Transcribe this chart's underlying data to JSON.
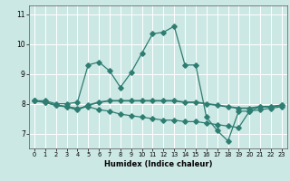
{
  "xlabel": "Humidex (Indice chaleur)",
  "bg_color": "#cce8e4",
  "line_color": "#2e7d72",
  "grid_color": "#ffffff",
  "xlim": [
    -0.5,
    23.5
  ],
  "ylim": [
    6.5,
    11.3
  ],
  "yticks": [
    7,
    8,
    9,
    10,
    11
  ],
  "xticks": [
    0,
    1,
    2,
    3,
    4,
    5,
    6,
    7,
    8,
    9,
    10,
    11,
    12,
    13,
    14,
    15,
    16,
    17,
    18,
    19,
    20,
    21,
    22,
    23
  ],
  "line1_x": [
    0,
    1,
    2,
    3,
    4,
    5,
    6,
    7,
    8,
    9,
    10,
    11,
    12,
    13,
    14,
    15,
    16,
    17,
    18,
    19,
    20,
    21,
    22,
    23
  ],
  "line1_y": [
    8.1,
    8.1,
    8.0,
    8.0,
    8.05,
    9.3,
    9.4,
    9.1,
    8.55,
    9.05,
    9.7,
    10.35,
    10.4,
    10.6,
    9.3,
    9.3,
    7.55,
    7.1,
    6.75,
    7.75,
    7.75,
    7.9,
    7.9,
    7.95
  ],
  "line2_x": [
    0,
    1,
    2,
    3,
    4,
    5,
    6,
    7,
    8,
    9,
    10,
    11,
    12,
    13,
    14,
    15,
    16,
    17,
    18,
    19,
    20,
    21,
    22,
    23
  ],
  "line2_y": [
    8.1,
    8.05,
    7.95,
    7.9,
    7.85,
    7.9,
    7.8,
    7.75,
    7.65,
    7.6,
    7.55,
    7.5,
    7.45,
    7.45,
    7.4,
    7.4,
    7.35,
    7.3,
    7.25,
    7.2,
    7.75,
    7.8,
    7.85,
    7.9
  ],
  "line3_x": [
    0,
    1,
    2,
    3,
    4,
    5,
    6,
    7,
    8,
    9,
    10,
    11,
    12,
    13,
    14,
    15,
    16,
    17,
    18,
    19,
    20,
    21,
    22,
    23
  ],
  "line3_y": [
    8.1,
    8.05,
    7.95,
    7.9,
    7.8,
    7.95,
    8.05,
    8.1,
    8.1,
    8.1,
    8.1,
    8.1,
    8.1,
    8.1,
    8.05,
    8.05,
    8.0,
    7.95,
    7.9,
    7.85,
    7.85,
    7.9,
    7.9,
    7.95
  ]
}
